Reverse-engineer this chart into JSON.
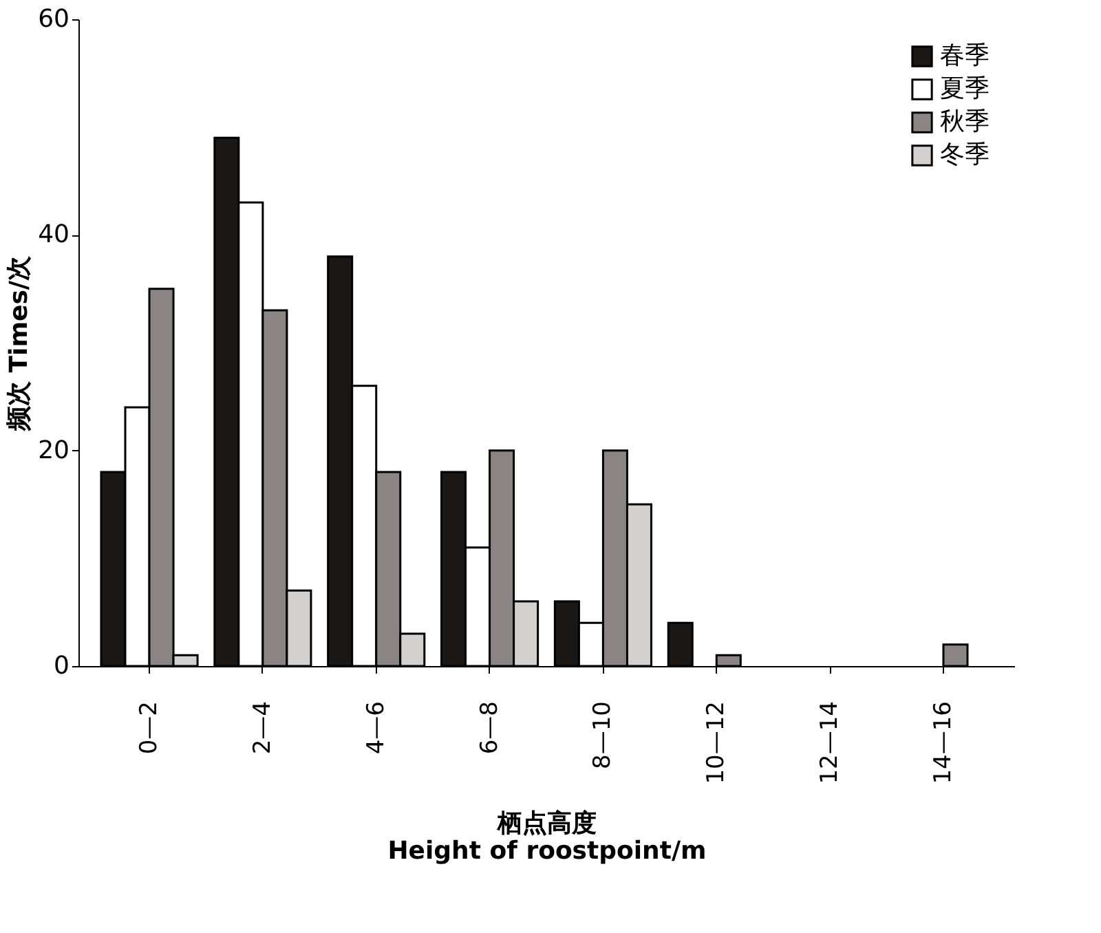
{
  "chart_data": {
    "type": "bar",
    "xlabel": "栖点高度\nHeight of roostpoint/m",
    "ylabel": "频次 Times/次",
    "categories": [
      "0—2",
      "2—4",
      "4—6",
      "6—8",
      "8—10",
      "10—12",
      "12—14",
      "14—16"
    ],
    "series": [
      {
        "name": "春季",
        "color": "#1a1714",
        "values": [
          18,
          49,
          38,
          18,
          6,
          4,
          0,
          0
        ]
      },
      {
        "name": "夏季",
        "color": "#ffffff",
        "values": [
          24,
          43,
          26,
          11,
          4,
          0,
          0,
          0
        ]
      },
      {
        "name": "秋季",
        "color": "#8a8584",
        "values": [
          35,
          33,
          18,
          20,
          20,
          1,
          0,
          2
        ]
      },
      {
        "name": "冬季",
        "color": "#d3d0d0",
        "values": [
          1,
          7,
          3,
          6,
          15,
          0,
          0,
          0
        ]
      }
    ],
    "ylim": [
      0,
      60
    ],
    "yticks": [
      0,
      20,
      40,
      60
    ],
    "grid": false,
    "legend": "top right"
  }
}
